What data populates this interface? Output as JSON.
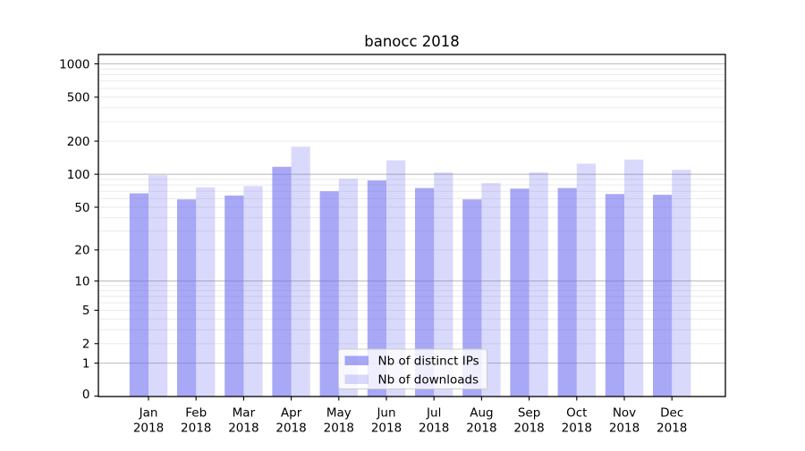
{
  "chart_data": {
    "type": "bar",
    "title": "banocc 2018",
    "categories": [
      "Jan",
      "Feb",
      "Mar",
      "Apr",
      "May",
      "Jun",
      "Jul",
      "Aug",
      "Sep",
      "Oct",
      "Nov",
      "Dec"
    ],
    "year": "2018",
    "series": [
      {
        "name": "Nb of distinct IPs",
        "color": "#6969f0",
        "opacity": 0.58,
        "values": [
          67,
          59,
          64,
          117,
          70,
          88,
          75,
          59,
          74,
          75,
          66,
          65
        ]
      },
      {
        "name": "Nb of downloads",
        "color": "#6969f0",
        "opacity": 0.25,
        "values": [
          98,
          76,
          78,
          178,
          91,
          134,
          104,
          83,
          104,
          125,
          136,
          110
        ]
      }
    ],
    "y_axis": {
      "scale": "log1p",
      "ticks": [
        0,
        1,
        2,
        5,
        10,
        20,
        50,
        100,
        200,
        500,
        1000
      ],
      "range": [
        0,
        1050
      ],
      "major_gridlines": [
        1,
        10,
        100,
        1000
      ],
      "minor_gridlines": [
        2,
        3,
        4,
        5,
        6,
        7,
        8,
        9,
        20,
        30,
        40,
        50,
        60,
        70,
        80,
        90,
        200,
        300,
        400,
        500,
        600,
        700,
        800,
        900
      ]
    },
    "legend": {
      "position": "lower-center"
    },
    "grid": true,
    "colors": {
      "major_grid": "#bdbdbd",
      "minor_grid": "#e8e8e8",
      "axis": "#000000",
      "legend_border": "#cccccc",
      "background": "#ffffff"
    }
  }
}
